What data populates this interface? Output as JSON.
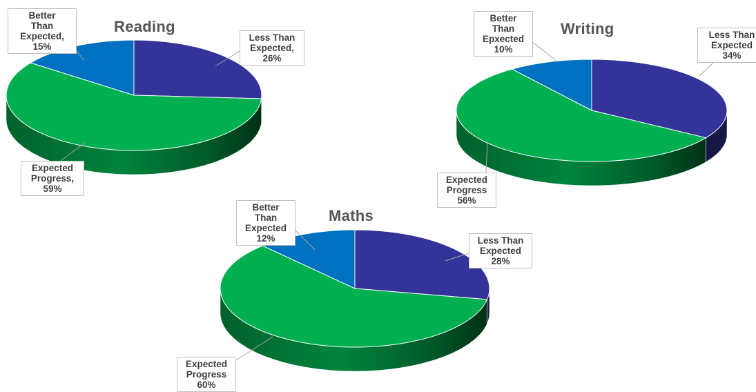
{
  "colors": {
    "less_than_expected": "#333399",
    "better_than_expected": "#0070C0",
    "expected_progress": "#00B050",
    "background": "#FFFFFF"
  },
  "chart_data": [
    {
      "type": "pie",
      "title": "Reading",
      "style": "3d",
      "slices": [
        {
          "label_lines": [
            "Less Than",
            "Expected,",
            "26%"
          ],
          "value": 26,
          "color": "#333399"
        },
        {
          "label_lines": [
            "Expected",
            "Progress,",
            "59%"
          ],
          "value": 59,
          "color": "#00B050"
        },
        {
          "label_lines": [
            "Better",
            "Than",
            "Expected,",
            "15%"
          ],
          "value": 15,
          "color": "#0070C0"
        }
      ]
    },
    {
      "type": "pie",
      "title": "Writing",
      "style": "3d",
      "slices": [
        {
          "label_lines": [
            "Less Than",
            "Expected",
            "34%"
          ],
          "value": 34,
          "color": "#333399"
        },
        {
          "label_lines": [
            "Expected",
            "Progress",
            "56%"
          ],
          "value": 56,
          "color": "#00B050"
        },
        {
          "label_lines": [
            "Better",
            "Than",
            "Epxected",
            "10%"
          ],
          "value": 10,
          "color": "#0070C0"
        }
      ]
    },
    {
      "type": "pie",
      "title": "Maths",
      "style": "3d",
      "slices": [
        {
          "label_lines": [
            "Less Than",
            "Expected",
            "28%"
          ],
          "value": 28,
          "color": "#333399"
        },
        {
          "label_lines": [
            "Expected",
            "Progress",
            "60%"
          ],
          "value": 60,
          "color": "#00B050"
        },
        {
          "label_lines": [
            "Better",
            "Than",
            "Expected",
            "12%"
          ],
          "value": 12,
          "color": "#0070C0"
        }
      ]
    }
  ]
}
